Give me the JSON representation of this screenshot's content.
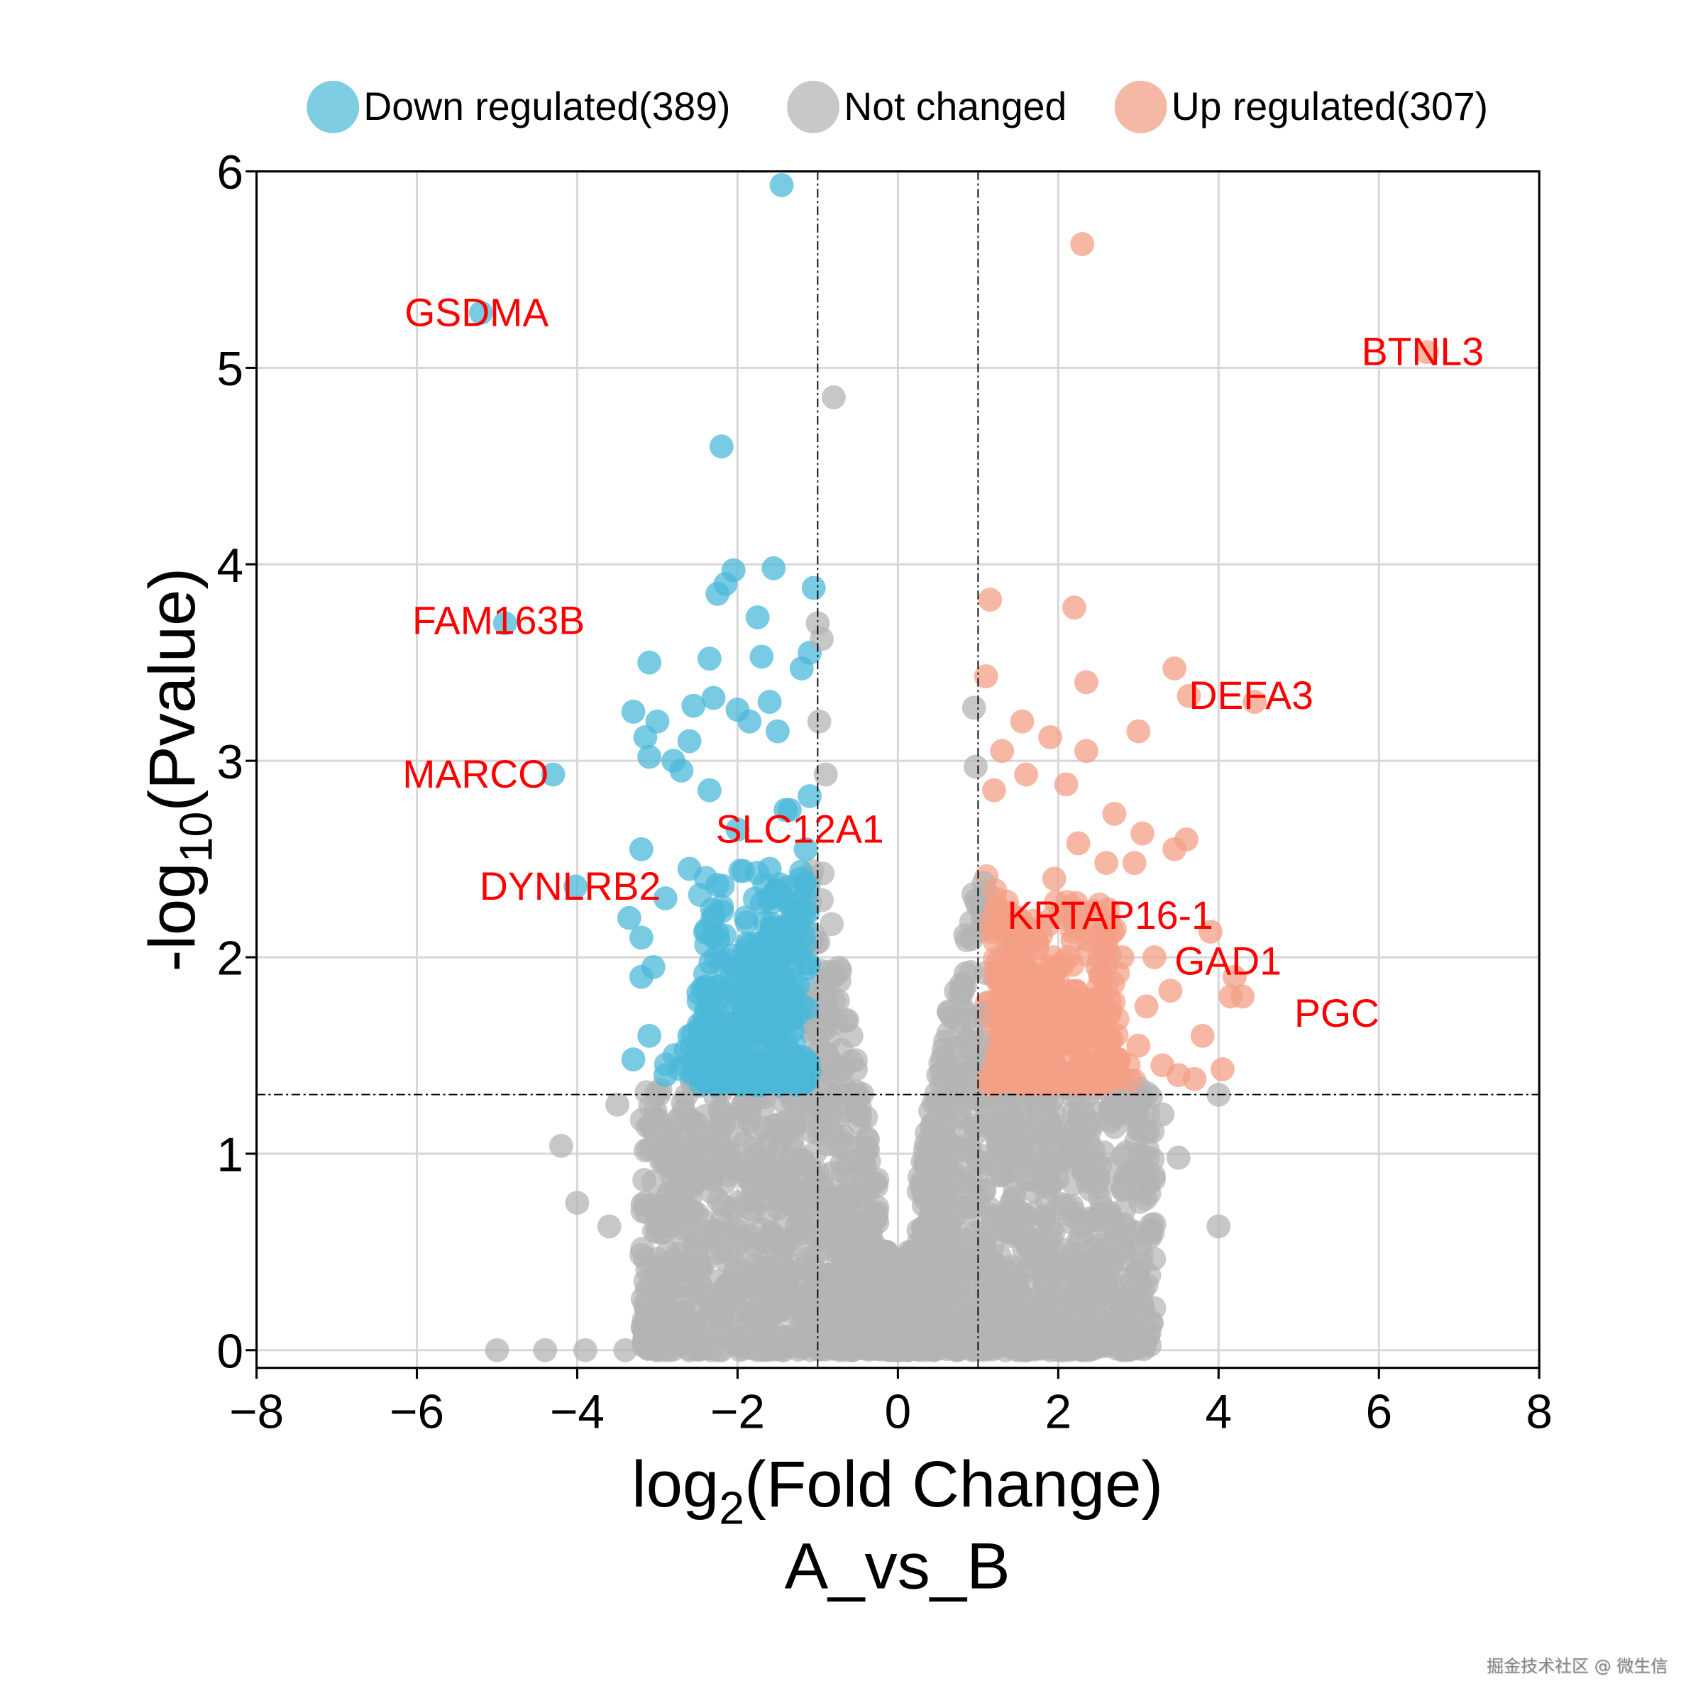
{
  "chart_data": {
    "type": "scatter",
    "title": "",
    "xlabel": "log2(Fold Change)",
    "xlabel_parts": {
      "base": "log",
      "sub": "2",
      "rest": "(Fold Change)"
    },
    "ylabel_parts": {
      "base": "-log",
      "sub": "10",
      "rest": "(Pvalue)"
    },
    "subtitle": "A_vs_B",
    "xlim": [
      -8,
      8
    ],
    "ylim": [
      -0.09,
      6.0
    ],
    "xticks": [
      "−8",
      "−6",
      "−4",
      "−2",
      "0",
      "2",
      "4",
      "6",
      "8"
    ],
    "xtick_values": [
      -8,
      -6,
      -4,
      -2,
      0,
      2,
      4,
      6,
      8
    ],
    "yticks": [
      "0",
      "1",
      "2",
      "3",
      "4",
      "5",
      "6"
    ],
    "ytick_values": [
      0,
      1,
      2,
      3,
      4,
      5,
      6
    ],
    "grid": true,
    "thresholds": {
      "log2fc": [
        -1,
        1
      ],
      "neg_log10_p": 1.301
    },
    "legend": {
      "placement": "top",
      "entries": [
        {
          "label": "Down regulated(389)",
          "color": "#7ecde3"
        },
        {
          "label": "Not changed",
          "color": "#c8c8c8"
        },
        {
          "label": "Up regulated(307)",
          "color": "#f5b8a4"
        }
      ]
    },
    "colors": {
      "down": "#4cb8d9",
      "nc": "#b4b4b4",
      "up": "#f3a086",
      "label": "#ff0000"
    },
    "series": [
      {
        "name": "Down regulated(389)",
        "key": "down",
        "points": [
          [
            -1.45,
            5.93
          ],
          [
            -2.2,
            4.6
          ],
          [
            -5.2,
            5.28
          ],
          [
            -4.9,
            3.7
          ],
          [
            -4.3,
            2.93
          ],
          [
            -4.02,
            2.36
          ],
          [
            -2.0,
            2.65
          ],
          [
            -2.05,
            3.97
          ],
          [
            -1.55,
            3.98
          ],
          [
            -1.05,
            3.88
          ],
          [
            -2.25,
            3.85
          ],
          [
            -2.15,
            3.9
          ],
          [
            -1.75,
            3.73
          ],
          [
            -3.1,
            3.5
          ],
          [
            -2.35,
            3.52
          ],
          [
            -1.7,
            3.53
          ],
          [
            -1.1,
            3.55
          ],
          [
            -1.2,
            3.47
          ],
          [
            -2.55,
            3.28
          ],
          [
            -2.3,
            3.32
          ],
          [
            -1.6,
            3.3
          ],
          [
            -3.3,
            3.25
          ],
          [
            -2.0,
            3.26
          ],
          [
            -3.0,
            3.2
          ],
          [
            -1.85,
            3.2
          ],
          [
            -3.15,
            3.12
          ],
          [
            -2.6,
            3.1
          ],
          [
            -1.5,
            3.15
          ],
          [
            -3.1,
            3.02
          ],
          [
            -2.8,
            3.0
          ],
          [
            -2.35,
            2.85
          ],
          [
            -1.1,
            2.82
          ],
          [
            -1.4,
            2.75
          ],
          [
            -3.2,
            2.55
          ],
          [
            -2.6,
            2.45
          ],
          [
            -3.35,
            2.2
          ],
          [
            -3.2,
            2.1
          ],
          [
            -3.05,
            1.95
          ],
          [
            -3.2,
            1.9
          ],
          [
            -2.4,
            1.85
          ],
          [
            -3.1,
            1.6
          ],
          [
            -3.3,
            1.48
          ],
          [
            -2.6,
            1.6
          ],
          [
            -2.3,
            1.55
          ],
          [
            -2.9,
            1.4
          ],
          [
            -2.7,
            2.95
          ],
          [
            -1.6,
            2.45
          ],
          [
            -2.9,
            2.3
          ],
          [
            -1.35,
            2.75
          ],
          [
            -1.15,
            2.55
          ]
        ]
      },
      {
        "name": "Up regulated(307)",
        "key": "up",
        "points": [
          [
            2.3,
            5.63
          ],
          [
            6.6,
            5.08
          ],
          [
            3.63,
            3.33
          ],
          [
            4.45,
            3.3
          ],
          [
            3.45,
            3.47
          ],
          [
            1.15,
            3.82
          ],
          [
            2.2,
            3.78
          ],
          [
            2.35,
            3.4
          ],
          [
            1.1,
            3.43
          ],
          [
            1.55,
            3.2
          ],
          [
            1.9,
            3.12
          ],
          [
            2.35,
            3.05
          ],
          [
            3.0,
            3.15
          ],
          [
            1.3,
            3.05
          ],
          [
            2.1,
            2.88
          ],
          [
            1.6,
            2.93
          ],
          [
            2.7,
            2.73
          ],
          [
            3.05,
            2.63
          ],
          [
            3.6,
            2.6
          ],
          [
            3.45,
            2.55
          ],
          [
            2.25,
            2.58
          ],
          [
            2.6,
            2.48
          ],
          [
            2.95,
            2.48
          ],
          [
            3.9,
            2.13
          ],
          [
            1.95,
            2.4
          ],
          [
            4.2,
            1.9
          ],
          [
            4.15,
            1.8
          ],
          [
            4.3,
            1.8
          ],
          [
            3.8,
            1.6
          ],
          [
            4.05,
            1.43
          ],
          [
            3.7,
            1.38
          ],
          [
            3.5,
            1.4
          ],
          [
            3.3,
            1.45
          ],
          [
            3.0,
            1.55
          ],
          [
            3.4,
            1.83
          ],
          [
            3.2,
            2.0
          ],
          [
            1.2,
            2.85
          ],
          [
            1.5,
            2.2
          ],
          [
            2.8,
            2.0
          ],
          [
            3.1,
            1.75
          ]
        ]
      },
      {
        "name": "Not changed",
        "key": "nc",
        "points": [
          [
            -0.8,
            4.85
          ],
          [
            -1.0,
            3.7
          ],
          [
            -0.95,
            3.62
          ],
          [
            -0.98,
            3.2
          ],
          [
            -0.9,
            2.93
          ],
          [
            0.95,
            3.27
          ],
          [
            0.97,
            2.97
          ],
          [
            -4.2,
            1.04
          ],
          [
            -4.0,
            0.75
          ],
          [
            -3.6,
            0.63
          ],
          [
            4.0,
            1.3
          ],
          [
            4.0,
            0.63
          ],
          [
            -3.5,
            1.25
          ],
          [
            3.3,
            1.2
          ],
          [
            3.5,
            0.98
          ],
          [
            -5.0,
            0
          ],
          [
            -4.4,
            0
          ],
          [
            -3.9,
            0
          ],
          [
            -3.4,
            0
          ],
          [
            -3.0,
            0
          ],
          [
            -2.6,
            0
          ],
          [
            -2.2,
            0
          ],
          [
            2.3,
            0
          ],
          [
            2.8,
            0
          ],
          [
            1.5,
            0
          ],
          [
            1.9,
            0
          ]
        ]
      }
    ],
    "annotations": [
      {
        "text": "GSDMA",
        "x": -5.2,
        "y": 5.28
      },
      {
        "text": "BTNL3",
        "x": 6.6,
        "y": 5.08
      },
      {
        "text": "FAM163B",
        "x": -4.9,
        "y": 3.7
      },
      {
        "text": "DEFA3",
        "x": 3.63,
        "y": 3.33
      },
      {
        "text": "MARCO",
        "x": -4.3,
        "y": 2.93
      },
      {
        "text": "SLC12A1",
        "x": -2.0,
        "y": 2.65
      },
      {
        "text": "DYNLRB2",
        "x": -4.02,
        "y": 2.36
      },
      {
        "text": "KRTAP16-1",
        "x": 1.5,
        "y": 2.2
      },
      {
        "text": "GAD1",
        "x": 4.2,
        "y": 1.9
      },
      {
        "text": "PGC",
        "x": 4.4,
        "y": 1.84
      }
    ]
  },
  "watermark": "掘金技术社区 @ 微生信"
}
